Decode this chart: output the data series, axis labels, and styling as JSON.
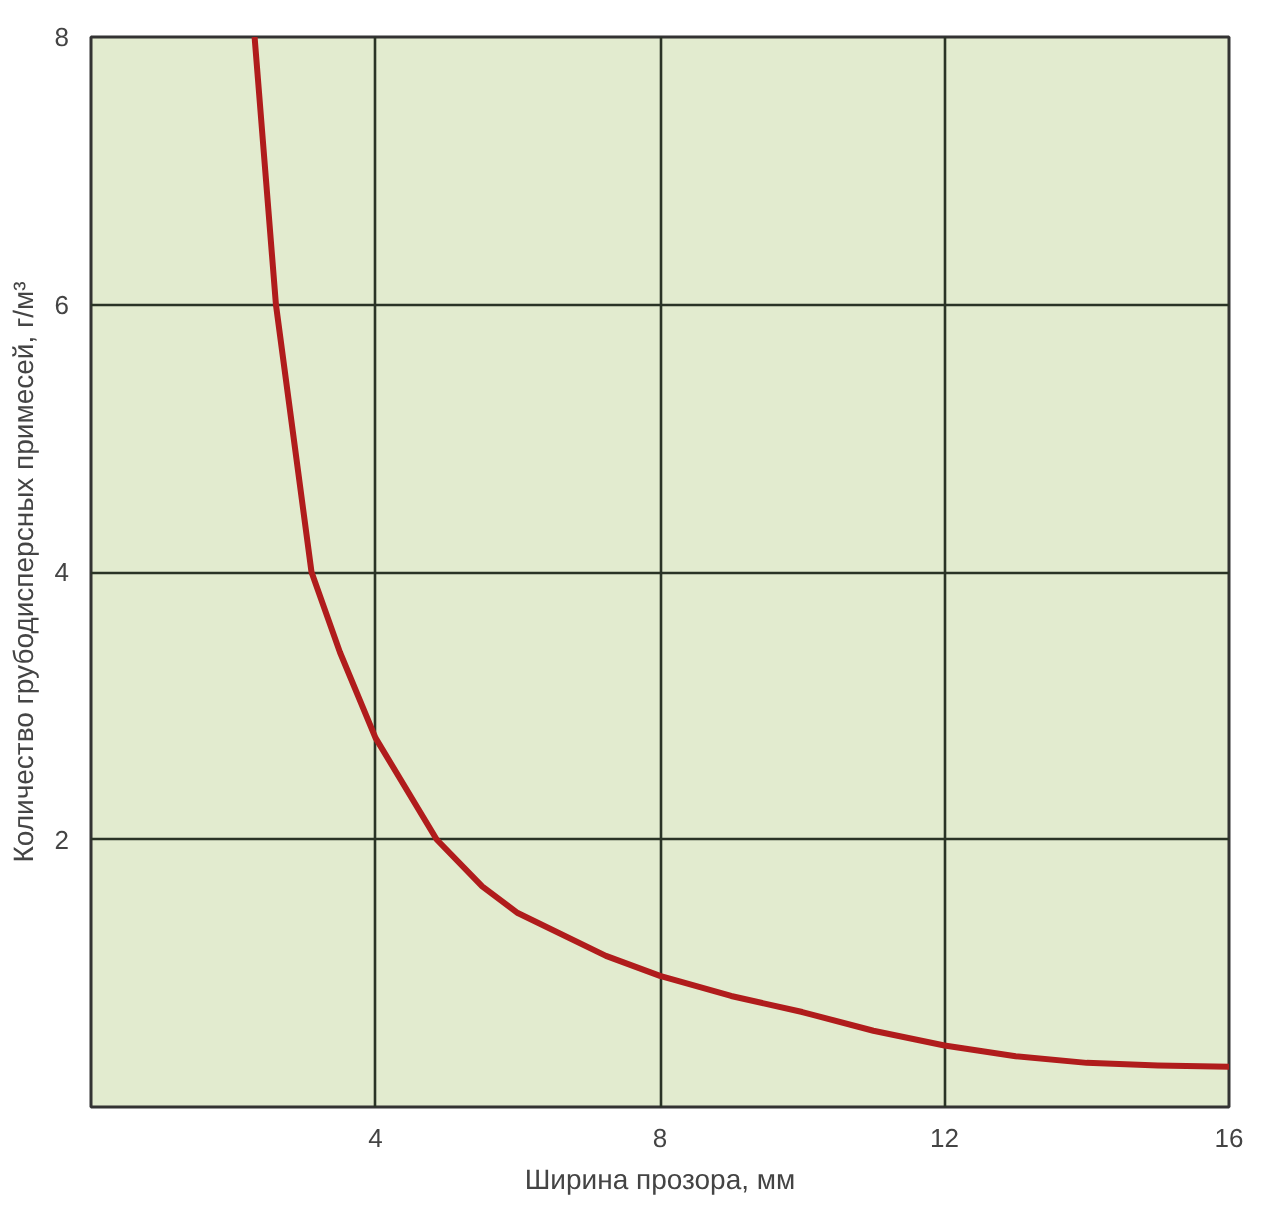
{
  "chart_data": {
    "type": "line",
    "xlabel": "Ширина прозора, мм",
    "ylabel": "Количество грубодисперсных примесей, г/м³",
    "xlim": [
      0,
      16
    ],
    "ylim": [
      0,
      8
    ],
    "xticks": [
      4,
      8,
      12,
      16
    ],
    "yticks": [
      2,
      4,
      6,
      8
    ],
    "grid": true,
    "marker": "none",
    "line_style": "solid",
    "series": [
      {
        "color": "#b01c1c",
        "x": [
          2.3,
          2.45,
          2.6,
          2.85,
          3.1,
          3.5,
          4,
          4.86,
          5.5,
          6,
          7.24,
          8,
          9,
          10,
          11,
          12,
          13,
          14,
          15,
          16
        ],
        "values": [
          8,
          7,
          6,
          5,
          4,
          3.4,
          2.76,
          2.0,
          1.65,
          1.45,
          1.13,
          0.98,
          0.83,
          0.71,
          0.57,
          0.46,
          0.38,
          0.33,
          0.31,
          0.3
        ]
      }
    ]
  }
}
